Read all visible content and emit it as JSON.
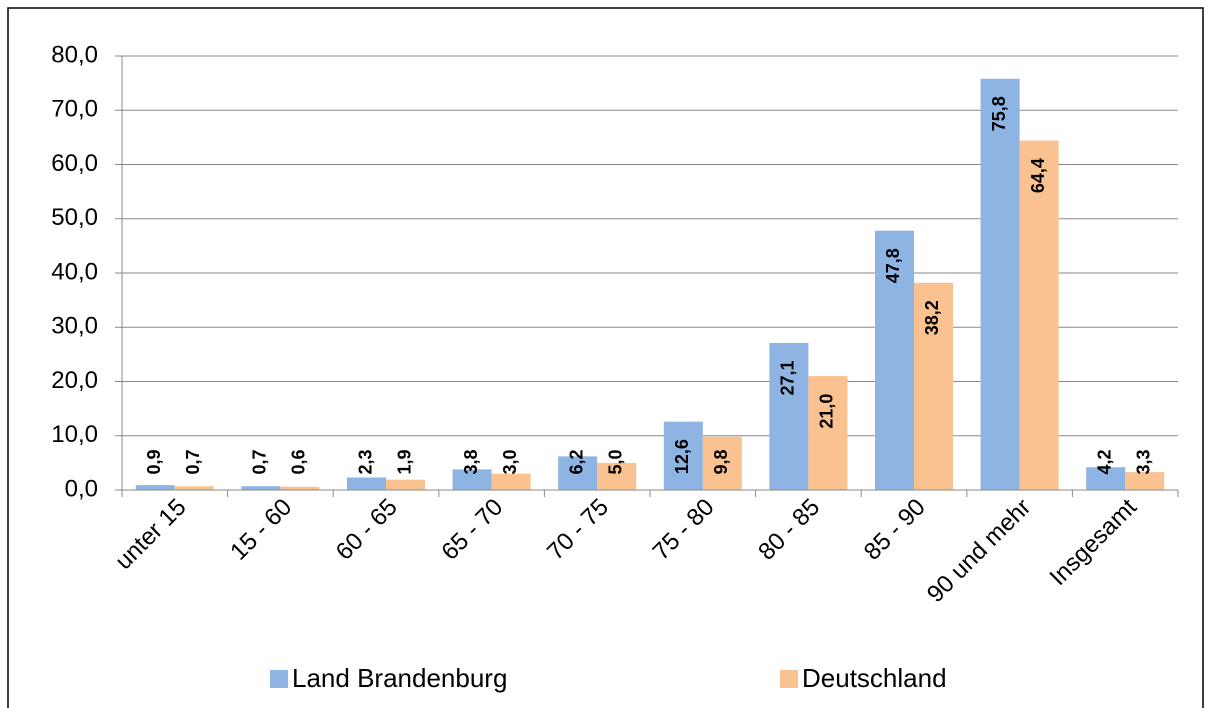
{
  "chart_data": {
    "type": "bar",
    "categories": [
      "unter 15",
      "15 - 60",
      "60 - 65",
      "65 - 70",
      "70 - 75",
      "75 - 80",
      "80 - 85",
      "85 - 90",
      "90  und mehr",
      "Insgesamt"
    ],
    "series": [
      {
        "name": "Land Brandenburg",
        "color": "#8eb4e3",
        "values": [
          0.9,
          0.7,
          2.3,
          3.8,
          6.2,
          12.6,
          27.1,
          47.8,
          75.8,
          4.2
        ],
        "value_labels": [
          "0,9",
          "0,7",
          "2,3",
          "3,8",
          "6,2",
          "12,6",
          "27,1",
          "47,8",
          "75,8",
          "4,2"
        ]
      },
      {
        "name": "Deutschland",
        "color": "#fac191",
        "values": [
          0.7,
          0.6,
          1.9,
          3.0,
          5.0,
          9.8,
          21.0,
          38.2,
          64.4,
          3.3
        ],
        "value_labels": [
          "0,7",
          "0,6",
          "1,9",
          "3,0",
          "5,0",
          "9,8",
          "21,0",
          "38,2",
          "64,4",
          "3,3"
        ]
      }
    ],
    "ylim": [
      0,
      80
    ],
    "yticks": [
      {
        "value": 0,
        "label": "0,0"
      },
      {
        "value": 10,
        "label": "10,0"
      },
      {
        "value": 20,
        "label": "20,0"
      },
      {
        "value": 30,
        "label": "30,0"
      },
      {
        "value": 40,
        "label": "40,0"
      },
      {
        "value": 50,
        "label": "50,0"
      },
      {
        "value": 60,
        "label": "60,0"
      },
      {
        "value": 70,
        "label": "70,0"
      },
      {
        "value": 80,
        "label": "80,0"
      }
    ],
    "grid": true,
    "legend": "bottom"
  }
}
